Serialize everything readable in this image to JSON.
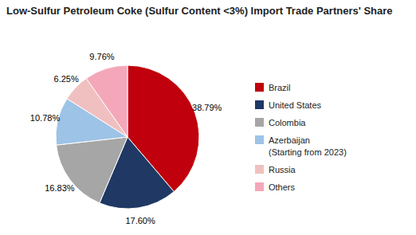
{
  "chart_data": {
    "type": "pie",
    "title": "Low-Sulfur Petroleum Coke (Sulfur Content <3%) Import Trade Partners' Share",
    "categories": [
      "Brazil",
      "United States",
      "Colombia",
      "Azerbaijan\n(Starting from 2023)",
      "Russia",
      "Others"
    ],
    "values": [
      38.79,
      17.6,
      16.83,
      10.78,
      6.25,
      9.76
    ],
    "value_labels": [
      "38.79%",
      "17.60%",
      "16.83%",
      "10.78%",
      "6.25%",
      "9.76%"
    ],
    "colors": [
      "#c0000c",
      "#1f3864",
      "#a6a6a6",
      "#9dc3e6",
      "#f0c0c0",
      "#f4a7b9"
    ],
    "data_labels": true,
    "legend": "right"
  }
}
